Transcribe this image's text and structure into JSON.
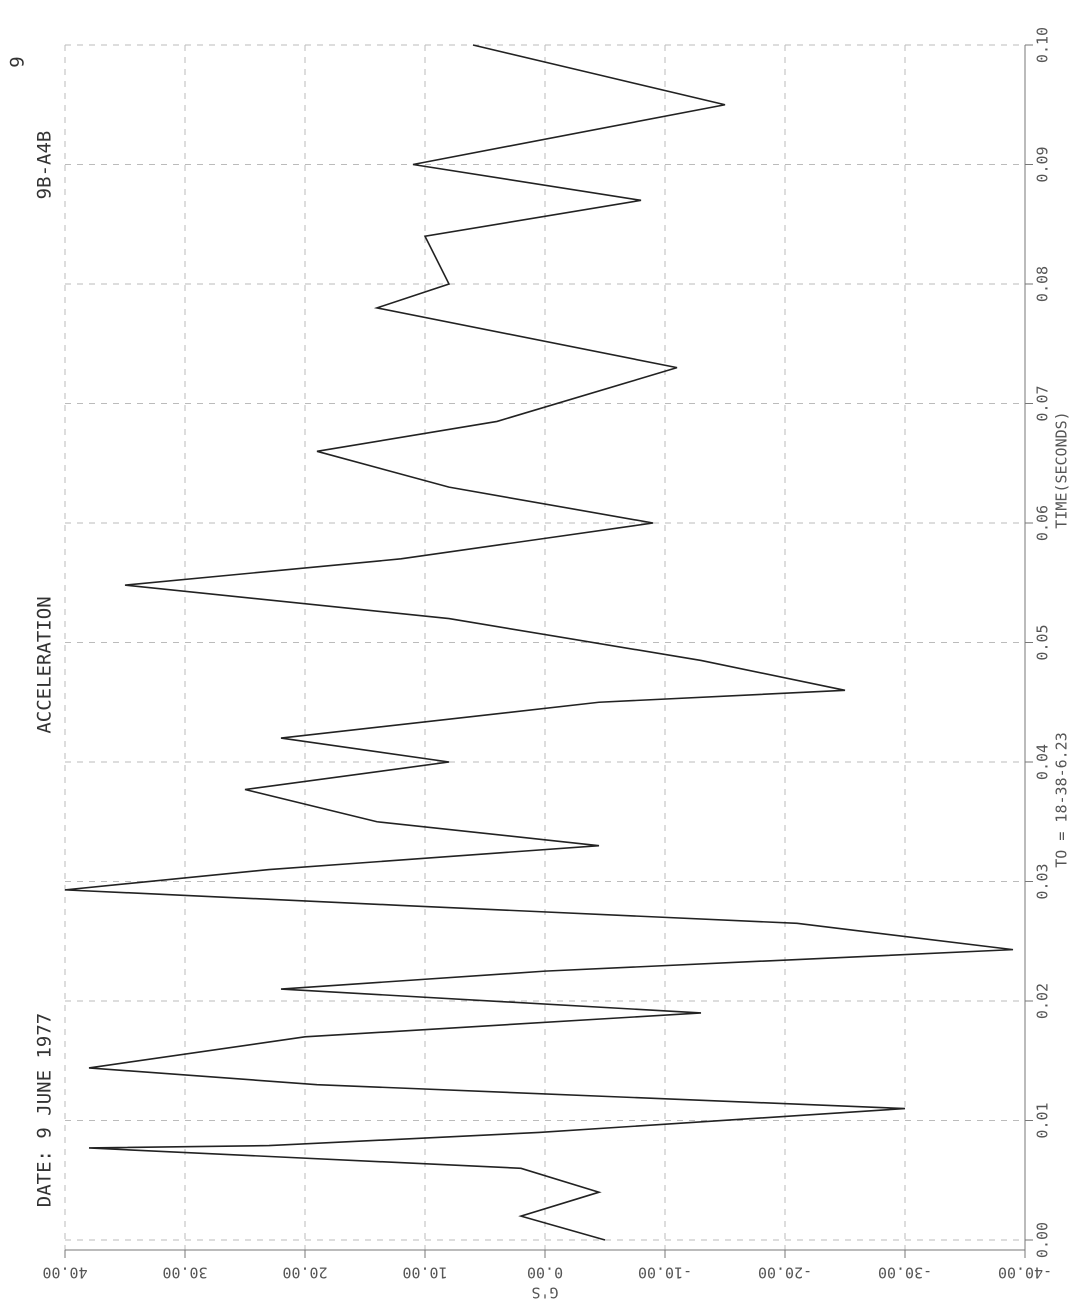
{
  "chart_data": {
    "type": "line",
    "title": "ACCELERATION",
    "annotations": [
      "DATE: 9 JUNE 1977",
      "9B-A4B",
      "TO = 18-38-6.23",
      "9"
    ],
    "x_label": "TIME(SECONDS)",
    "y_label": "G'S",
    "x": [
      0,
      0.002,
      0.004,
      0.006,
      0.0077,
      0.0079,
      0.009,
      0.011,
      0.013,
      0.0144,
      0.017,
      0.019,
      0.021,
      0.0225,
      0.0243,
      0.0265,
      0.028,
      0.0293,
      0.031,
      0.033,
      0.035,
      0.0377,
      0.04,
      0.042,
      0.045,
      0.046,
      0.0485,
      0.052,
      0.0548,
      0.057,
      0.06,
      0.063,
      0.066,
      0.0685,
      0.073,
      0.078,
      0.08,
      0.084,
      0.087,
      0.09,
      0.095,
      0.0975,
      0.1
    ],
    "values": [
      -5,
      2,
      -4.5,
      2,
      38,
      23,
      0.5,
      -30,
      19,
      38,
      20,
      -13,
      22,
      0,
      -39,
      -21,
      12,
      40,
      23,
      -4.5,
      14,
      25,
      8,
      22,
      -4.5,
      -25,
      -13,
      8,
      35,
      12,
      -9,
      8,
      19,
      4,
      -11,
      14,
      8,
      10,
      -8,
      11,
      -15,
      -4.5,
      6
    ],
    "color": "#222222",
    "xlim": [
      0,
      0.1
    ],
    "ylim": [
      40,
      -40
    ],
    "xticks": [
      {
        "value": 0,
        "label": "0.00"
      },
      {
        "value": 0.01,
        "label": "0.01"
      },
      {
        "value": 0.02,
        "label": "0.02"
      },
      {
        "value": 0.03,
        "label": "0.03"
      },
      {
        "value": 0.04,
        "label": "0.04"
      },
      {
        "value": 0.05,
        "label": "0.05"
      },
      {
        "value": 0.06,
        "label": "0.06"
      },
      {
        "value": 0.07,
        "label": "0.07"
      },
      {
        "value": 0.08,
        "label": "0.08"
      },
      {
        "value": 0.09,
        "label": "0.09"
      },
      {
        "value": 0.1,
        "label": "0.10"
      }
    ],
    "yticks": [
      {
        "value": 40,
        "label": "40.00"
      },
      {
        "value": 30,
        "label": "30.00"
      },
      {
        "value": 20,
        "label": "20.00"
      },
      {
        "value": 10,
        "label": "10.00"
      },
      {
        "value": 0,
        "label": "0.00"
      },
      {
        "value": -10,
        "label": "-10.00"
      },
      {
        "value": -20,
        "label": "-20.00"
      },
      {
        "value": -30,
        "label": "-30.00"
      },
      {
        "value": -40,
        "label": "-40.00"
      }
    ],
    "grid": true
  }
}
